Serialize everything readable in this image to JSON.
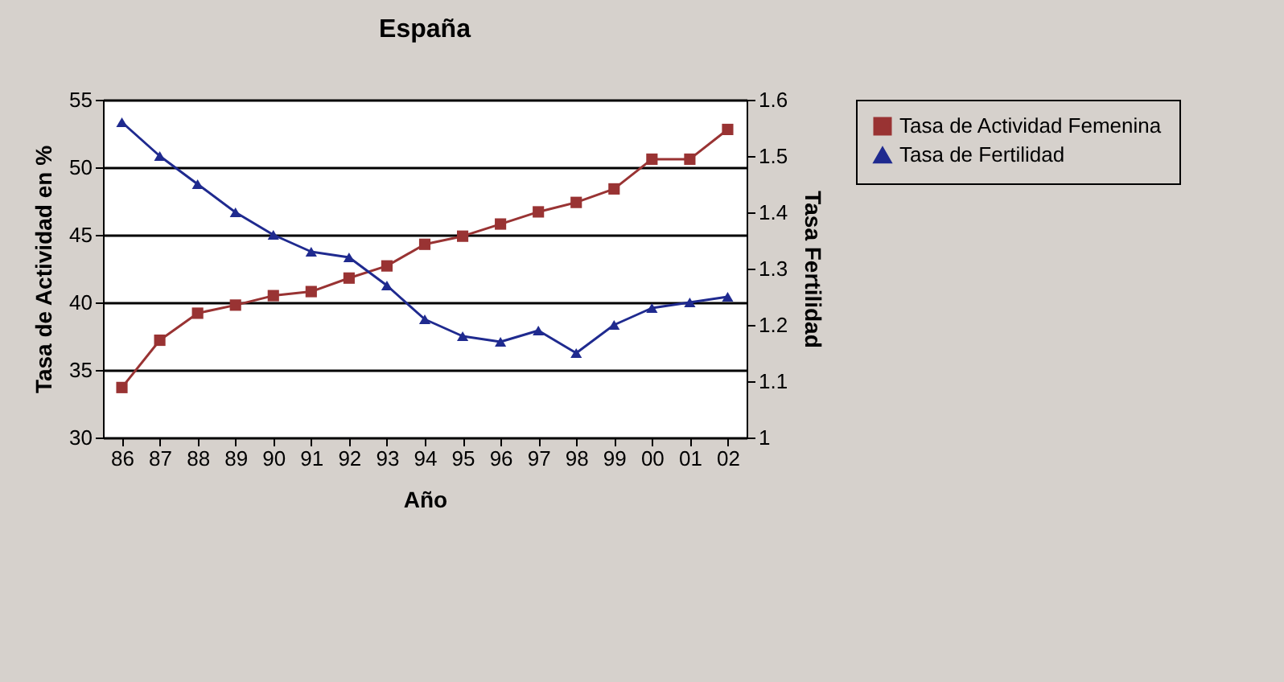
{
  "chart_data": {
    "type": "line",
    "title": "España",
    "xlabel": "Año",
    "ylabel": "Tasa de Actividad en %",
    "y2label": "Tasa Fertilidad",
    "categories": [
      "86",
      "87",
      "88",
      "89",
      "90",
      "91",
      "92",
      "93",
      "94",
      "95",
      "96",
      "97",
      "98",
      "99",
      "00",
      "01",
      "02"
    ],
    "series": [
      {
        "name": "Tasa de Actividad Femenina",
        "color": "#993333",
        "marker": "square",
        "values": [
          33.7,
          37.2,
          39.2,
          39.8,
          40.5,
          40.8,
          41.8,
          42.7,
          44.3,
          44.9,
          45.8,
          46.7,
          47.4,
          48.4,
          50.6,
          50.6,
          52.8
        ]
      },
      {
        "name": "Tasa de Fertilidad",
        "color": "#1f2a8f",
        "marker": "triangle",
        "axis": "y2",
        "values": [
          1.56,
          1.5,
          1.45,
          1.4,
          1.36,
          1.33,
          1.32,
          1.27,
          1.21,
          1.18,
          1.17,
          1.19,
          1.15,
          1.2,
          1.23,
          1.24,
          1.25
        ]
      }
    ],
    "ylim": [
      30,
      55
    ],
    "yticks": [
      30,
      35,
      40,
      45,
      50,
      55
    ],
    "y2lim": [
      1,
      1.6
    ],
    "y2ticks": [
      1,
      1.1,
      1.2,
      1.3,
      1.4,
      1.5,
      1.6
    ],
    "grid": "y",
    "legend": "right"
  }
}
